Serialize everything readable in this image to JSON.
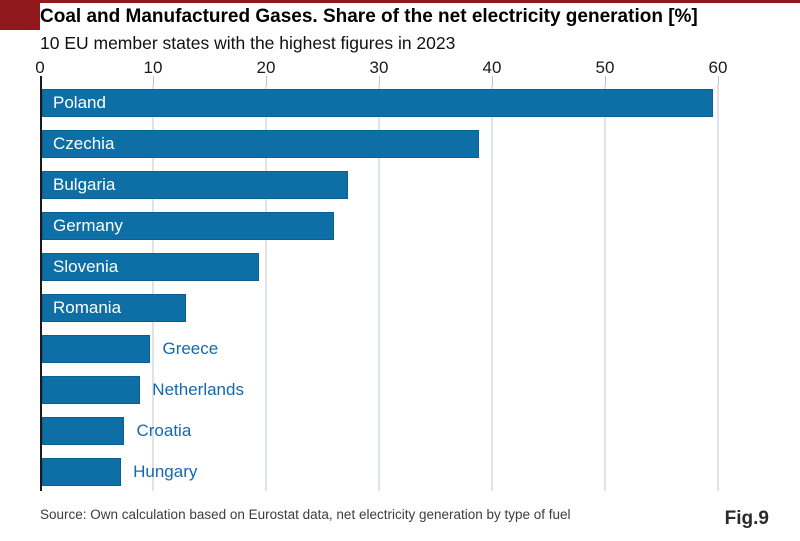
{
  "header": {
    "title": "Coal and Manufactured Gases. Share of the net electricity generation [%]",
    "subtitle": "10 EU member states with the highest figures in 2023"
  },
  "footer": {
    "source": "Source: Own calculation based on Eurostat data, net electricity generation by type of fuel",
    "figure_label": "Fig.9"
  },
  "colors": {
    "bar_fill": "#0d6fa5",
    "bar_border": "#0a608f",
    "label_inside": "#ffffff",
    "label_outside": "#1569b0",
    "accent_red": "#8f191c",
    "gridline": "#dde3e8",
    "axis_line": "#1a1a1a",
    "source_text": "#3d3d3d"
  },
  "chart_data": {
    "type": "bar",
    "orientation": "horizontal",
    "title": "Coal and Manufactured Gases. Share of the net electricity generation [%]",
    "subtitle": "10 EU member states with the highest figures in 2023",
    "categories": [
      "Poland",
      "Czechia",
      "Bulgaria",
      "Germany",
      "Slovenia",
      "Romania",
      "Greece",
      "Netherlands",
      "Croatia",
      "Hungary"
    ],
    "values": [
      59.4,
      38.7,
      27.1,
      25.8,
      19.2,
      12.7,
      9.6,
      8.7,
      7.3,
      7.0
    ],
    "label_inside": [
      true,
      true,
      true,
      true,
      true,
      true,
      false,
      false,
      false,
      false
    ],
    "xlabel": "",
    "ylabel": "",
    "xlim": [
      0,
      60
    ],
    "x_ticks": [
      0,
      10,
      20,
      30,
      40,
      50,
      60
    ],
    "axis_position": "top",
    "grid": true,
    "legend": false
  }
}
